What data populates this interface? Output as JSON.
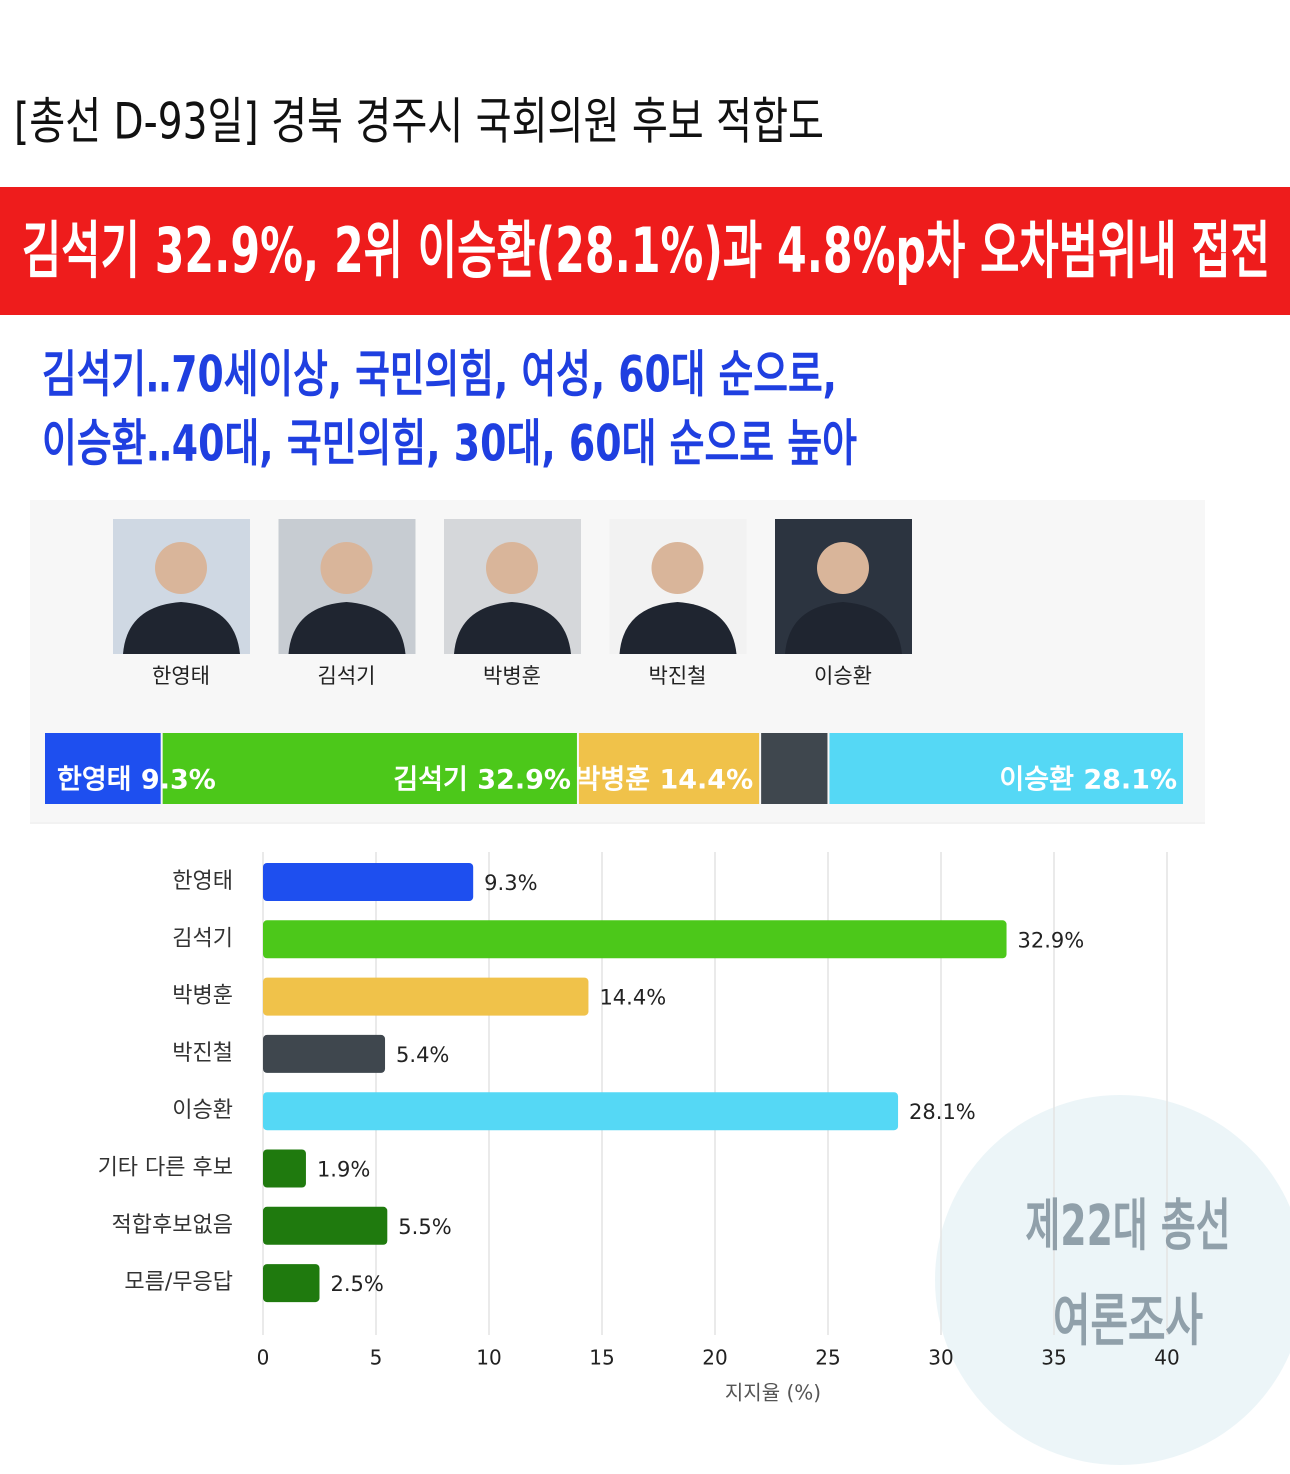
{
  "header": {
    "title": "[총선 D-93일] 경북 경주시 국회의원 후보 적합도",
    "headline": "김석기 32.9%, 2위 이승환(28.1%)과 4.8%p차 오차범위내 접전",
    "subheadings": [
      "김석기‥70세이상, 국민의힘, 여성, 60대 순으로,",
      "이승환‥40대, 국민의힘, 30대, 60대 순으로 높아"
    ]
  },
  "watermark": [
    "제22대 총선",
    "여론조사"
  ],
  "chart_data": [
    {
      "type": "stacked-bar",
      "categories": [
        "한영태",
        "김석기",
        "박병훈",
        "박진철",
        "이승환"
      ],
      "values": [
        9.3,
        32.9,
        14.4,
        5.4,
        28.1
      ],
      "value_labels": [
        "한영태 9.3%",
        "김석기 32.9%",
        "박병훈 14.4%",
        null,
        "이승환 28.1%"
      ],
      "colors": [
        "#1e4fef",
        "#4cc81a",
        "#f0c24a",
        "#3f474e",
        "#55d8f5"
      ]
    },
    {
      "type": "hbar",
      "categories": [
        "한영태",
        "김석기",
        "박병훈",
        "박진철",
        "이승환",
        "기타 다른 후보",
        "적합후보없음",
        "모름/무응답"
      ],
      "values": [
        9.3,
        32.9,
        14.4,
        5.4,
        28.1,
        1.9,
        5.5,
        2.5
      ],
      "value_labels": [
        "9.3%",
        "32.9%",
        "14.4%",
        "5.4%",
        "28.1%",
        "1.9%",
        "5.5%",
        "2.5%"
      ],
      "colors": [
        "#1e4fef",
        "#4cc81a",
        "#f0c24a",
        "#3f474e",
        "#55d8f5",
        "#1f7a0e",
        "#1f7a0e",
        "#1f7a0e"
      ],
      "xlim": [
        0,
        40
      ],
      "xticks": [
        0,
        5,
        10,
        15,
        20,
        25,
        30,
        35,
        40
      ],
      "xlabel": "지지율 (%)",
      "grid": true
    }
  ]
}
